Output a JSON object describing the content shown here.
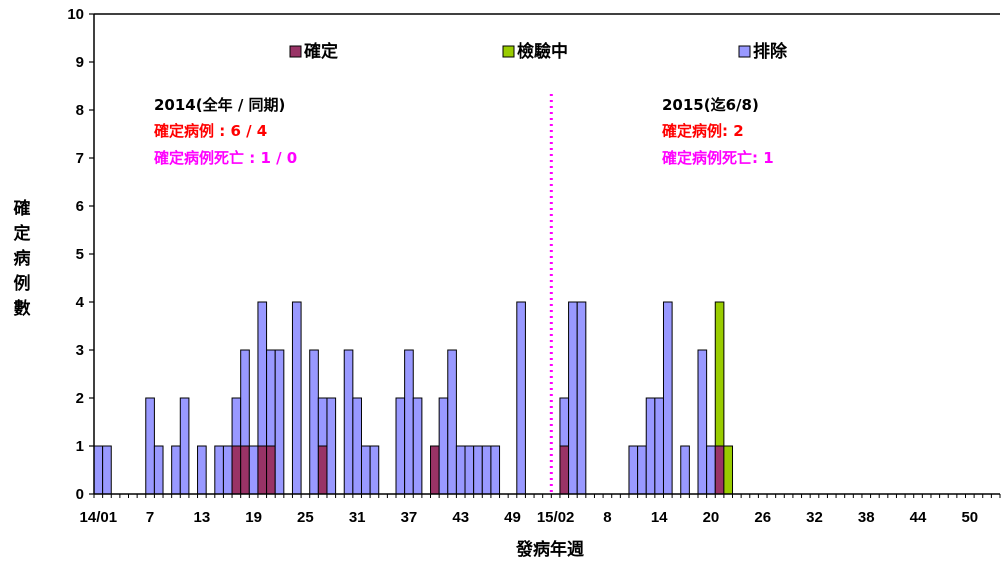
{
  "chart_data": {
    "type": "bar",
    "stacked": true,
    "xlabel": "發病年週",
    "ylabel": "確定病例數",
    "ylim": [
      0,
      10
    ],
    "y_ticks": [
      "0",
      "1",
      "2",
      "3",
      "4",
      "5",
      "6",
      "7",
      "8",
      "9",
      "10"
    ],
    "x_tick_labels": [
      "14/01",
      "7",
      "13",
      "19",
      "25",
      "31",
      "37",
      "43",
      "49",
      "15/02",
      "8",
      "14",
      "20",
      "26",
      "32",
      "38",
      "44",
      "50"
    ],
    "divider_between": "2014 week 53 and 2015 week 1",
    "legend": [
      {
        "name": "確定",
        "color": "#993366"
      },
      {
        "name": "檢驗中",
        "color": "#99cc00"
      },
      {
        "name": "排除",
        "color": "#9999ff"
      }
    ],
    "legend_position": "top",
    "categories_2014_weeks": "1-53",
    "categories_2015_weeks": "1-52",
    "series": [
      {
        "name": "確定",
        "year2014": {
          "17": 1,
          "18": 1,
          "20": 1,
          "21": 1,
          "27": 1,
          "40": 1
        },
        "year2015": {
          "2": 1,
          "20": 1
        }
      },
      {
        "name": "檢驗中",
        "year2014": {},
        "year2015": {
          "20": 3,
          "21": 1
        }
      },
      {
        "name": "排除",
        "year2014": {
          "1": 1,
          "2": 1,
          "7": 2,
          "8": 1,
          "10": 1,
          "11": 2,
          "13": 1,
          "15": 1,
          "16": 1,
          "17": 1,
          "18": 2,
          "19": 1,
          "20": 3,
          "21": 2,
          "22": 3,
          "24": 4,
          "26": 3,
          "27": 1,
          "28": 2,
          "30": 3,
          "31": 2,
          "32": 1,
          "33": 1,
          "36": 2,
          "37": 3,
          "38": 2,
          "41": 2,
          "42": 3,
          "43": 1,
          "44": 1,
          "45": 1,
          "46": 1,
          "47": 1,
          "50": 4
        },
        "year2015": {
          "2": 1,
          "3": 4,
          "4": 4,
          "10": 1,
          "11": 1,
          "12": 2,
          "13": 2,
          "14": 4,
          "16": 1,
          "18": 3,
          "19": 1
        }
      }
    ]
  },
  "annotations": {
    "left": {
      "heading": "2014(全年 / 同期)",
      "confirmed": "確定病例 : 6 / 4",
      "deaths": "確定病例死亡 : 1 / 0"
    },
    "right": {
      "heading": "2015(迄6/8)",
      "confirmed": "確定病例: 2",
      "deaths": "確定病例死亡: 1"
    }
  },
  "colors": {
    "confirmed": "#993366",
    "testing": "#99cc00",
    "excluded": "#9999ff",
    "divider": "#ff00ff",
    "confirmed_text": "#ff0000",
    "death_text": "#ff00ff"
  }
}
